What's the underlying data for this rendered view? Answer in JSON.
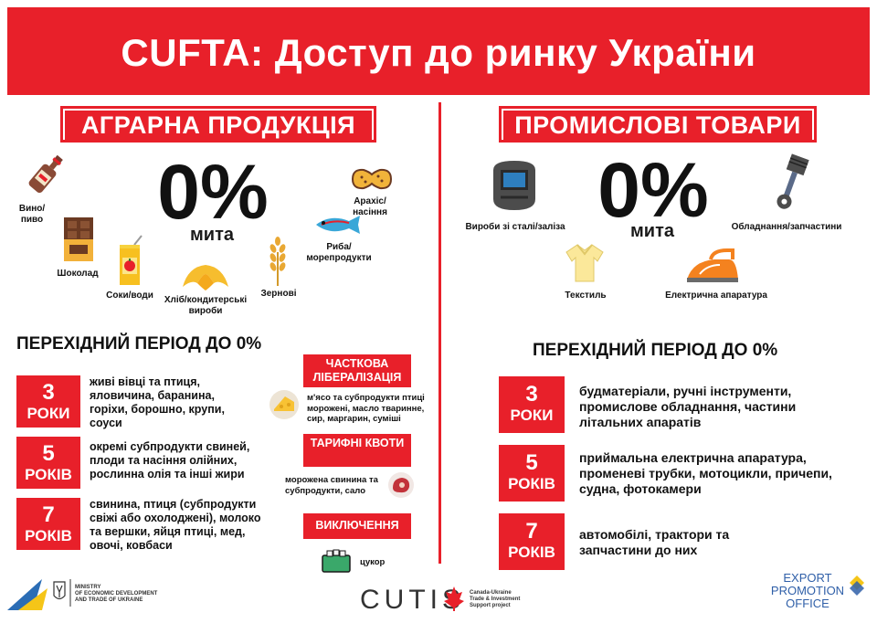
{
  "header": {
    "title": "CUFTA: Доступ до ринку України"
  },
  "left": {
    "section_title": "АГРАРНА ПРОДУКЦІЯ",
    "zero": "0%",
    "duty": "мита",
    "products": [
      {
        "label": "Вино/пиво",
        "icon": "wine-bottle-icon"
      },
      {
        "label": "Шоколад",
        "icon": "chocolate-icon"
      },
      {
        "label": "Соки/води",
        "icon": "juice-box-icon"
      },
      {
        "label": "Хліб/кондитерські вироби",
        "icon": "croissant-icon"
      },
      {
        "label": "Зернові",
        "icon": "wheat-icon"
      },
      {
        "label": "Риба/морепродукти",
        "icon": "fish-icon"
      },
      {
        "label": "Арахіс/насіння",
        "icon": "peanut-icon"
      }
    ],
    "transition_title": "ПЕРЕХІДНИЙ ПЕРІОД ДО 0%",
    "periods": [
      {
        "num": "3",
        "unit": "РОКИ",
        "text": "живі вівці та птиця, яловичина, баранина, горіхи, борошно, крупи, соуси"
      },
      {
        "num": "5",
        "unit": "РОКІВ",
        "text": "окремі субпродукти свиней, плоди та насіння олійних, рослинна олія та інші жири"
      },
      {
        "num": "7",
        "unit": "РОКІВ",
        "text": "свинина, птиця (субпродукти свіжі або охолоджені), молоко та вершки, яйця птиці, мед, овочі, ковбаси"
      }
    ],
    "partial": {
      "title": "ЧАСТКОВА ЛІБЕРАЛІЗАЦІЯ",
      "text": "м'ясо та субпродукти птиці морожені, масло тваринне, сир, маргарин, суміші",
      "icon": "cheese-icon"
    },
    "quotas": {
      "title": "ТАРИФНІ КВОТИ",
      "text": "морожена свинина та субпродукти, сало",
      "icon": "meat-icon"
    },
    "exceptions": {
      "title": "ВИКЛЮЧЕННЯ",
      "text": "цукор",
      "icon": "sugar-icon"
    }
  },
  "right": {
    "section_title": "ПРОМИСЛОВІ ТОВАРИ",
    "zero": "0%",
    "duty": "мита",
    "products": [
      {
        "label": "Вироби зі сталі/заліза",
        "icon": "welding-mask-icon"
      },
      {
        "label": "Обладнання/запчастини",
        "icon": "piston-icon"
      },
      {
        "label": "Текстиль",
        "icon": "shirt-icon"
      },
      {
        "label": "Електрична апаратура",
        "icon": "iron-icon"
      }
    ],
    "transition_title": "ПЕРЕХІДНИЙ ПЕРІОД ДО 0%",
    "periods": [
      {
        "num": "3",
        "unit": "РОКИ",
        "text": "будматеріали, ручні інструменти, промислове обладнання, частини літальних апаратів"
      },
      {
        "num": "5",
        "unit": "РОКІВ",
        "text": "приймальна електрична апаратура, променеві трубки, мотоцикли, причепи, судна, фотокамери"
      },
      {
        "num": "7",
        "unit": "РОКІВ",
        "text": "автомобілі, трактори та запчастини до них"
      }
    ]
  },
  "footer": {
    "ministry": [
      "MINISTRY",
      "OF ECONOMIC DEVELOPMENT",
      "AND TRADE OF UKRAINE"
    ],
    "cutis": "CUTIS",
    "cutis_sub": [
      "Canada-Ukraine",
      "Trade & Investment",
      "Support project"
    ],
    "epo": [
      "EXPORT",
      "PROMOTION",
      "OFFICE"
    ]
  },
  "colors": {
    "accent": "#e8202a",
    "epo_blue": "#2f5fa8"
  }
}
